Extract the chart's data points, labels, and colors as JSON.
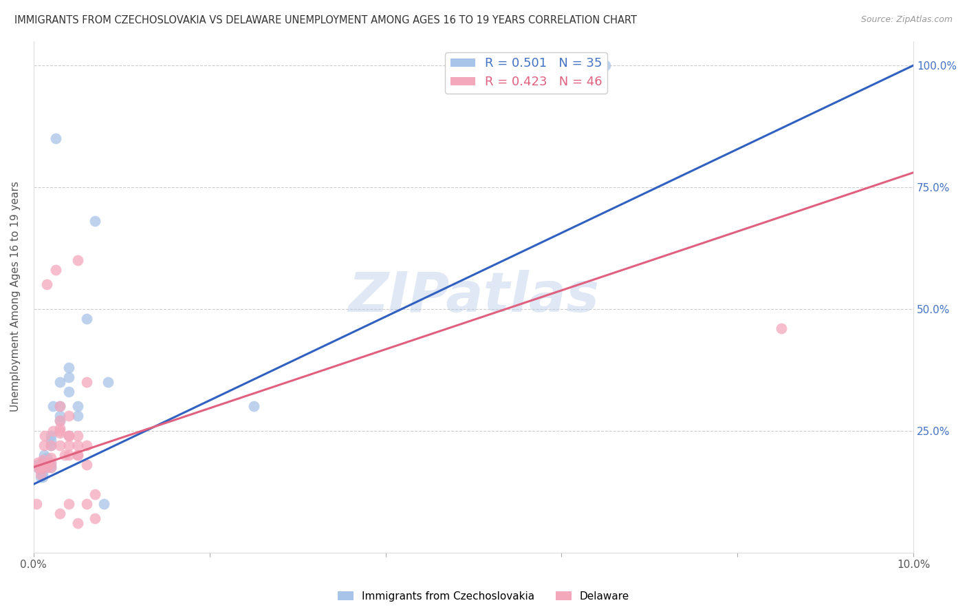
{
  "title": "IMMIGRANTS FROM CZECHOSLOVAKIA VS DELAWARE UNEMPLOYMENT AMONG AGES 16 TO 19 YEARS CORRELATION CHART",
  "source": "Source: ZipAtlas.com",
  "ylabel": "Unemployment Among Ages 16 to 19 years",
  "xlabel_label_blue": "Immigrants from Czechoslovakia",
  "xlabel_label_pink": "Delaware",
  "xmin": 0.0,
  "xmax": 0.1,
  "ymin": 0.0,
  "ymax": 1.05,
  "blue_R": 0.501,
  "blue_N": 35,
  "pink_R": 0.423,
  "pink_N": 46,
  "blue_color": "#a8c4e8",
  "pink_color": "#f4a8bc",
  "blue_line_color": "#3060c0",
  "pink_line_color": "#e06080",
  "watermark": "ZIPatlas",
  "blue_line_x0": 0.0,
  "blue_line_y0": 0.14,
  "blue_line_x1": 0.1,
  "blue_line_y1": 1.0,
  "pink_line_x0": 0.0,
  "pink_line_y0": 0.175,
  "pink_line_x1": 0.1,
  "pink_line_y1": 0.78,
  "blue_scatter_x": [
    0.0005,
    0.0005,
    0.0007,
    0.0008,
    0.001,
    0.001,
    0.001,
    0.001,
    0.0012,
    0.0012,
    0.0015,
    0.0015,
    0.0015,
    0.002,
    0.002,
    0.002,
    0.002,
    0.002,
    0.0022,
    0.0025,
    0.003,
    0.003,
    0.003,
    0.003,
    0.004,
    0.004,
    0.004,
    0.005,
    0.005,
    0.006,
    0.007,
    0.008,
    0.0085,
    0.025,
    0.065
  ],
  "blue_scatter_y": [
    0.175,
    0.18,
    0.17,
    0.155,
    0.155,
    0.16,
    0.175,
    0.185,
    0.19,
    0.2,
    0.175,
    0.185,
    0.195,
    0.175,
    0.18,
    0.22,
    0.23,
    0.24,
    0.3,
    0.85,
    0.27,
    0.28,
    0.3,
    0.35,
    0.33,
    0.36,
    0.38,
    0.28,
    0.3,
    0.48,
    0.68,
    0.1,
    0.35,
    0.3,
    1.0
  ],
  "pink_scatter_x": [
    0.0003,
    0.0005,
    0.0005,
    0.0007,
    0.0008,
    0.001,
    0.001,
    0.001,
    0.0012,
    0.0013,
    0.0015,
    0.0015,
    0.0015,
    0.002,
    0.002,
    0.002,
    0.002,
    0.0022,
    0.0025,
    0.003,
    0.003,
    0.003,
    0.003,
    0.003,
    0.0035,
    0.004,
    0.004,
    0.004,
    0.004,
    0.005,
    0.005,
    0.005,
    0.005,
    0.006,
    0.006,
    0.006,
    0.007,
    0.007,
    0.003,
    0.004,
    0.003,
    0.004,
    0.005,
    0.005,
    0.006,
    0.085
  ],
  "pink_scatter_y": [
    0.1,
    0.175,
    0.185,
    0.175,
    0.16,
    0.175,
    0.18,
    0.19,
    0.22,
    0.24,
    0.175,
    0.185,
    0.55,
    0.175,
    0.185,
    0.195,
    0.22,
    0.25,
    0.58,
    0.22,
    0.245,
    0.255,
    0.27,
    0.3,
    0.2,
    0.2,
    0.22,
    0.24,
    0.28,
    0.2,
    0.22,
    0.24,
    0.6,
    0.18,
    0.22,
    0.35,
    0.07,
    0.12,
    0.08,
    0.1,
    0.25,
    0.24,
    0.2,
    0.06,
    0.1,
    0.46
  ]
}
